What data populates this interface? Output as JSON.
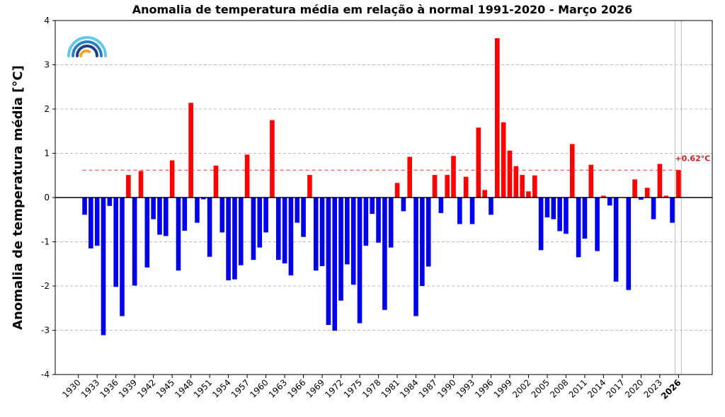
{
  "chart_data": {
    "type": "bar",
    "title": "Anomalia de temperatura média em relação à normal 1991-2020 - Março 2026",
    "xlabel": "",
    "ylabel": "Anomalia de temperatura média [°C]",
    "ylim": [
      -4,
      4
    ],
    "yticks": [
      -4,
      -3,
      -2,
      -1,
      0,
      1,
      2,
      3,
      4
    ],
    "xtick_labels": [
      "1930",
      "1933",
      "1936",
      "1939",
      "1942",
      "1945",
      "1948",
      "1951",
      "1954",
      "1957",
      "1960",
      "1963",
      "1966",
      "1969",
      "1972",
      "1975",
      "1978",
      "1981",
      "1984",
      "1987",
      "1990",
      "1993",
      "1996",
      "1999",
      "2002",
      "2005",
      "2008",
      "2011",
      "2014",
      "2017",
      "2020",
      "2023",
      "2026"
    ],
    "grid": true,
    "positive_color": "#ff0000",
    "negative_color": "#0000ee",
    "reference_line": {
      "value": 0.62,
      "label": "+0.62°C",
      "color": "#e03030"
    },
    "highlight_year": 2026,
    "x": [
      1931,
      1932,
      1933,
      1934,
      1935,
      1936,
      1937,
      1938,
      1939,
      1940,
      1941,
      1942,
      1943,
      1944,
      1945,
      1946,
      1947,
      1948,
      1949,
      1950,
      1951,
      1952,
      1953,
      1954,
      1955,
      1956,
      1957,
      1958,
      1959,
      1960,
      1961,
      1962,
      1963,
      1964,
      1965,
      1966,
      1967,
      1968,
      1969,
      1970,
      1971,
      1972,
      1973,
      1974,
      1975,
      1976,
      1977,
      1978,
      1979,
      1980,
      1981,
      1982,
      1983,
      1984,
      1985,
      1986,
      1987,
      1988,
      1989,
      1990,
      1991,
      1992,
      1993,
      1994,
      1995,
      1996,
      1997,
      1998,
      1999,
      2000,
      2001,
      2002,
      2003,
      2004,
      2005,
      2006,
      2007,
      2008,
      2009,
      2010,
      2011,
      2012,
      2013,
      2014,
      2015,
      2016,
      2017,
      2018,
      2019,
      2020,
      2021,
      2022,
      2023,
      2024,
      2025,
      2026
    ],
    "values": [
      -0.39,
      -1.15,
      -1.09,
      -3.11,
      -0.19,
      -2.02,
      -2.68,
      0.51,
      -1.99,
      0.6,
      -1.58,
      -0.49,
      -0.84,
      -0.87,
      0.84,
      -1.65,
      -0.75,
      2.14,
      -0.57,
      -0.04,
      -1.34,
      0.72,
      -0.79,
      -1.87,
      -1.85,
      -1.53,
      0.97,
      -1.41,
      -1.13,
      -0.79,
      1.75,
      -1.41,
      -1.49,
      -1.76,
      -0.57,
      -0.89,
      0.51,
      -1.65,
      -1.55,
      -2.88,
      -3.01,
      -2.33,
      -1.51,
      -1.97,
      -2.84,
      -1.09,
      -0.37,
      -1.02,
      -2.54,
      -1.13,
      0.33,
      -0.31,
      0.92,
      -2.68,
      -2.0,
      -1.56,
      0.51,
      -0.35,
      0.51,
      0.94,
      -0.6,
      0.47,
      -0.6,
      1.58,
      0.17,
      -0.39,
      3.6,
      1.7,
      1.06,
      0.71,
      0.51,
      0.14,
      0.5,
      -1.19,
      -0.45,
      -0.49,
      -0.76,
      -0.82,
      1.21,
      -1.35,
      -0.93,
      0.74,
      -1.21,
      0.04,
      -0.18,
      -1.9,
      0.0,
      -2.09,
      0.41,
      -0.05,
      0.22,
      -0.49,
      0.76,
      0.04,
      -0.57,
      0.62
    ]
  }
}
